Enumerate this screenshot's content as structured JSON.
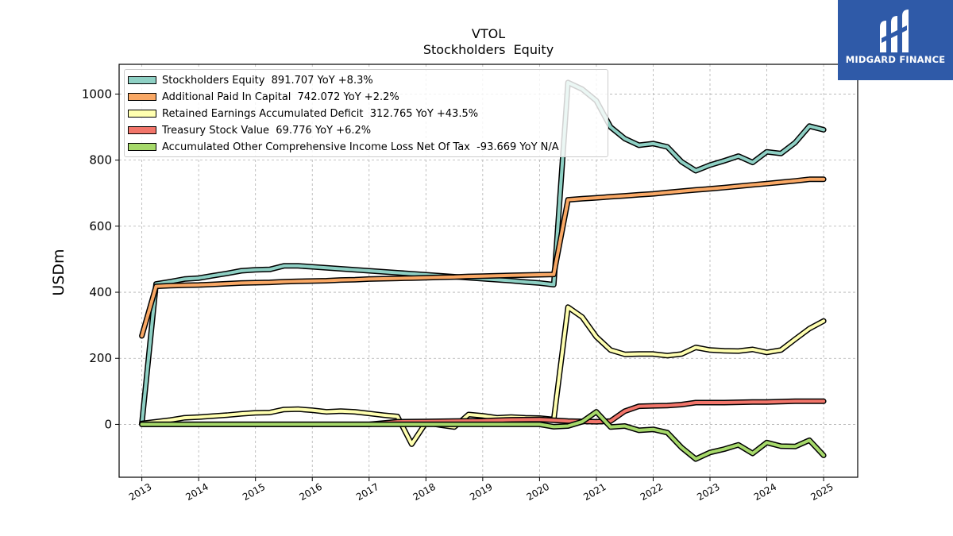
{
  "chart_data": {
    "type": "line",
    "title": "VTOL",
    "subtitle": "Stockholders  Equity",
    "xlabel": "",
    "ylabel": "USDm",
    "xlim": [
      2012.6,
      2025.6
    ],
    "ylim": [
      -160,
      1090
    ],
    "x_ticks": [
      "2013",
      "2014",
      "2015",
      "2016",
      "2017",
      "2018",
      "2019",
      "2020",
      "2021",
      "2022",
      "2023",
      "2024",
      "2025"
    ],
    "y_ticks": [
      0,
      200,
      400,
      600,
      800,
      1000
    ],
    "grid": true,
    "legend_position": "top-left",
    "series": [
      {
        "name": "Stockholders Equity",
        "legend": "Stockholders Equity  891.707 YoY +8.3%",
        "color": "#8ed0c4",
        "points": [
          [
            2013.0,
            2
          ],
          [
            2013.25,
            425
          ],
          [
            2013.5,
            432
          ],
          [
            2013.75,
            440
          ],
          [
            2014.0,
            443
          ],
          [
            2014.25,
            450
          ],
          [
            2014.5,
            457
          ],
          [
            2014.75,
            465
          ],
          [
            2015.0,
            468
          ],
          [
            2015.25,
            469
          ],
          [
            2015.5,
            480
          ],
          [
            2015.75,
            480
          ],
          [
            2016.0,
            477
          ],
          [
            2016.25,
            474
          ],
          [
            2016.5,
            471
          ],
          [
            2016.75,
            468
          ],
          [
            2017.0,
            465
          ],
          [
            2017.25,
            462
          ],
          [
            2017.5,
            459
          ],
          [
            2017.75,
            456
          ],
          [
            2018.0,
            453
          ],
          [
            2018.25,
            450
          ],
          [
            2018.5,
            447
          ],
          [
            2018.75,
            444
          ],
          [
            2019.0,
            441
          ],
          [
            2019.25,
            438
          ],
          [
            2019.5,
            435
          ],
          [
            2019.75,
            431
          ],
          [
            2020.0,
            428
          ],
          [
            2020.25,
            423
          ],
          [
            2020.5,
            1035
          ],
          [
            2020.75,
            1015
          ],
          [
            2021.0,
            980
          ],
          [
            2021.25,
            900
          ],
          [
            2021.5,
            865
          ],
          [
            2021.75,
            845
          ],
          [
            2022.0,
            850
          ],
          [
            2022.25,
            840
          ],
          [
            2022.5,
            795
          ],
          [
            2022.75,
            768
          ],
          [
            2023.0,
            785
          ],
          [
            2023.25,
            798
          ],
          [
            2023.5,
            812
          ],
          [
            2023.75,
            793
          ],
          [
            2024.0,
            825
          ],
          [
            2024.25,
            820
          ],
          [
            2024.5,
            853
          ],
          [
            2024.75,
            903
          ],
          [
            2025.0,
            892
          ]
        ]
      },
      {
        "name": "Additional Paid In Capital",
        "legend": "Additional Paid In Capital  742.072 YoY +2.2%",
        "color": "#f9a865",
        "points": [
          [
            2013.0,
            268
          ],
          [
            2013.25,
            418
          ],
          [
            2013.5,
            420
          ],
          [
            2013.75,
            421
          ],
          [
            2014.0,
            422
          ],
          [
            2014.25,
            424
          ],
          [
            2014.5,
            426
          ],
          [
            2014.75,
            428
          ],
          [
            2015.0,
            429
          ],
          [
            2015.25,
            430
          ],
          [
            2015.5,
            432
          ],
          [
            2015.75,
            433
          ],
          [
            2016.0,
            434
          ],
          [
            2016.25,
            435
          ],
          [
            2016.5,
            437
          ],
          [
            2016.75,
            438
          ],
          [
            2017.0,
            440
          ],
          [
            2017.25,
            441
          ],
          [
            2017.5,
            442
          ],
          [
            2017.75,
            443
          ],
          [
            2018.0,
            444
          ],
          [
            2018.25,
            445
          ],
          [
            2018.5,
            446
          ],
          [
            2018.75,
            448
          ],
          [
            2019.0,
            449
          ],
          [
            2019.25,
            450
          ],
          [
            2019.5,
            451
          ],
          [
            2019.75,
            452
          ],
          [
            2020.0,
            453
          ],
          [
            2020.25,
            454
          ],
          [
            2020.5,
            680
          ],
          [
            2020.75,
            683
          ],
          [
            2021.0,
            686
          ],
          [
            2021.25,
            689
          ],
          [
            2021.5,
            692
          ],
          [
            2021.75,
            695
          ],
          [
            2022.0,
            698
          ],
          [
            2022.25,
            702
          ],
          [
            2022.5,
            706
          ],
          [
            2022.75,
            710
          ],
          [
            2023.0,
            713
          ],
          [
            2023.25,
            717
          ],
          [
            2023.5,
            721
          ],
          [
            2023.75,
            725
          ],
          [
            2024.0,
            729
          ],
          [
            2024.25,
            733
          ],
          [
            2024.5,
            737
          ],
          [
            2024.75,
            742
          ],
          [
            2025.0,
            742
          ]
        ]
      },
      {
        "name": "Retained Earnings Accumulated Deficit",
        "legend": "Retained Earnings Accumulated Deficit  312.765 YoY +43.5%",
        "color": "#ffffb0",
        "points": [
          [
            2013.0,
            3
          ],
          [
            2013.25,
            8
          ],
          [
            2013.5,
            13
          ],
          [
            2013.75,
            20
          ],
          [
            2014.0,
            22
          ],
          [
            2014.25,
            25
          ],
          [
            2014.5,
            28
          ],
          [
            2014.75,
            32
          ],
          [
            2015.0,
            35
          ],
          [
            2015.25,
            36
          ],
          [
            2015.5,
            45
          ],
          [
            2015.75,
            46
          ],
          [
            2016.0,
            43
          ],
          [
            2016.25,
            38
          ],
          [
            2016.5,
            40
          ],
          [
            2016.75,
            38
          ],
          [
            2017.0,
            33
          ],
          [
            2017.25,
            28
          ],
          [
            2017.5,
            24
          ],
          [
            2017.75,
            -60
          ],
          [
            2018.0,
            5
          ],
          [
            2018.25,
            -2
          ],
          [
            2018.5,
            -8
          ],
          [
            2018.75,
            30
          ],
          [
            2019.0,
            26
          ],
          [
            2019.25,
            20
          ],
          [
            2019.5,
            22
          ],
          [
            2019.75,
            20
          ],
          [
            2020.0,
            19
          ],
          [
            2020.25,
            15
          ],
          [
            2020.5,
            355
          ],
          [
            2020.75,
            325
          ],
          [
            2021.0,
            265
          ],
          [
            2021.25,
            225
          ],
          [
            2021.5,
            212
          ],
          [
            2021.75,
            213
          ],
          [
            2022.0,
            213
          ],
          [
            2022.25,
            208
          ],
          [
            2022.5,
            213
          ],
          [
            2022.75,
            233
          ],
          [
            2023.0,
            225
          ],
          [
            2023.25,
            223
          ],
          [
            2023.5,
            222
          ],
          [
            2023.75,
            227
          ],
          [
            2024.0,
            218
          ],
          [
            2024.25,
            225
          ],
          [
            2024.5,
            258
          ],
          [
            2024.75,
            290
          ],
          [
            2025.0,
            313
          ]
        ]
      },
      {
        "name": "Treasury Stock Value",
        "legend": "Treasury Stock Value  69.776 YoY +6.2%",
        "color": "#f2756a",
        "points": [
          [
            2013.0,
            0
          ],
          [
            2014.0,
            0
          ],
          [
            2015.0,
            0
          ],
          [
            2016.0,
            0
          ],
          [
            2017.0,
            0
          ],
          [
            2017.5,
            8
          ],
          [
            2018.0,
            9
          ],
          [
            2018.5,
            10
          ],
          [
            2019.0,
            11
          ],
          [
            2019.5,
            14
          ],
          [
            2020.0,
            15
          ],
          [
            2020.5,
            10
          ],
          [
            2021.0,
            8
          ],
          [
            2021.25,
            10
          ],
          [
            2021.5,
            40
          ],
          [
            2021.75,
            55
          ],
          [
            2022.0,
            56
          ],
          [
            2022.25,
            57
          ],
          [
            2022.5,
            60
          ],
          [
            2022.75,
            66
          ],
          [
            2023.0,
            66
          ],
          [
            2023.25,
            66
          ],
          [
            2023.5,
            67
          ],
          [
            2023.75,
            68
          ],
          [
            2024.0,
            68
          ],
          [
            2024.25,
            69
          ],
          [
            2024.5,
            70
          ],
          [
            2024.75,
            70
          ],
          [
            2025.0,
            70
          ]
        ]
      },
      {
        "name": "Accumulated Other Comprehensive Income Loss Net Of Tax",
        "legend": "Accumulated Other Comprehensive Income Loss Net Of Tax  -93.669 YoY N/A",
        "color": "#a6d96a",
        "points": [
          [
            2013.0,
            0
          ],
          [
            2014.0,
            0
          ],
          [
            2015.0,
            0
          ],
          [
            2016.0,
            0
          ],
          [
            2017.0,
            0
          ],
          [
            2018.0,
            0
          ],
          [
            2019.0,
            0
          ],
          [
            2020.0,
            0
          ],
          [
            2020.25,
            -7
          ],
          [
            2020.5,
            -5
          ],
          [
            2020.75,
            8
          ],
          [
            2021.0,
            38
          ],
          [
            2021.25,
            -8
          ],
          [
            2021.5,
            -5
          ],
          [
            2021.75,
            -18
          ],
          [
            2022.0,
            -15
          ],
          [
            2022.25,
            -25
          ],
          [
            2022.5,
            -70
          ],
          [
            2022.75,
            -105
          ],
          [
            2023.0,
            -85
          ],
          [
            2023.25,
            -75
          ],
          [
            2023.5,
            -62
          ],
          [
            2023.75,
            -88
          ],
          [
            2024.0,
            -55
          ],
          [
            2024.25,
            -66
          ],
          [
            2024.5,
            -67
          ],
          [
            2024.75,
            -48
          ],
          [
            2025.0,
            -94
          ]
        ]
      }
    ]
  },
  "logo": {
    "text": "MIDGARD FINANCE"
  }
}
